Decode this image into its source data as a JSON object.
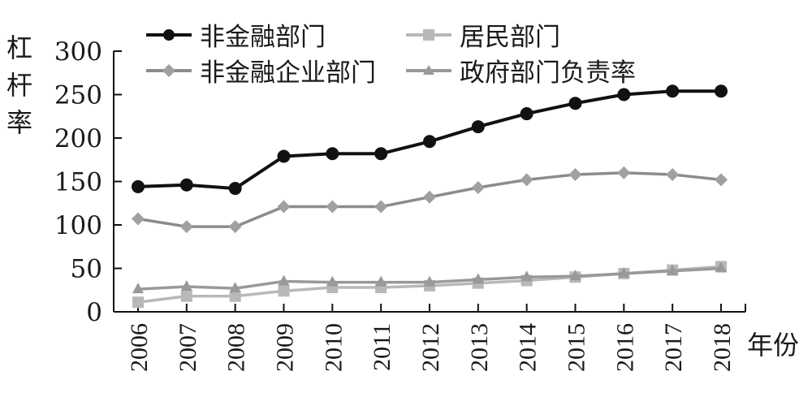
{
  "chart_data": {
    "type": "line",
    "title": "",
    "xlabel": "年份",
    "ylabel": "杠杆率",
    "ylim": [
      0,
      300
    ],
    "yticks": [
      0,
      50,
      100,
      150,
      200,
      250,
      300
    ],
    "grid": false,
    "legend_position": "top",
    "categories": [
      "2006",
      "2007",
      "2008",
      "2009",
      "2010",
      "2011",
      "2012",
      "2013",
      "2014",
      "2015",
      "2016",
      "2017",
      "2018"
    ],
    "series": [
      {
        "name": "非金融部门",
        "marker": "circle",
        "color": "#111111",
        "values": [
          144,
          146,
          142,
          179,
          182,
          182,
          196,
          213,
          228,
          240,
          250,
          254,
          254
        ]
      },
      {
        "name": "居民部门",
        "marker": "square",
        "color": "#b8b8b8",
        "values": [
          11,
          18,
          18,
          24,
          28,
          28,
          30,
          33,
          36,
          40,
          44,
          48,
          52
        ]
      },
      {
        "name": "非金融企业部门",
        "marker": "diamond",
        "color": "#8c8c8c",
        "values": [
          107,
          98,
          98,
          121,
          121,
          121,
          132,
          143,
          152,
          158,
          160,
          158,
          152
        ]
      },
      {
        "name": "政府部门负责率",
        "marker": "triangle",
        "color": "#999999",
        "values": [
          26,
          29,
          27,
          35,
          34,
          34,
          34,
          37,
          40,
          41,
          44,
          47,
          50
        ]
      }
    ]
  },
  "axis": {
    "ylabel_chars": [
      "杠",
      "杆",
      "率"
    ],
    "xlabel": "年份"
  },
  "legend": [
    {
      "label": "非金融部门"
    },
    {
      "label": "居民部门"
    },
    {
      "label": "非金融企业部门"
    },
    {
      "label": "政府部门负责率"
    }
  ]
}
